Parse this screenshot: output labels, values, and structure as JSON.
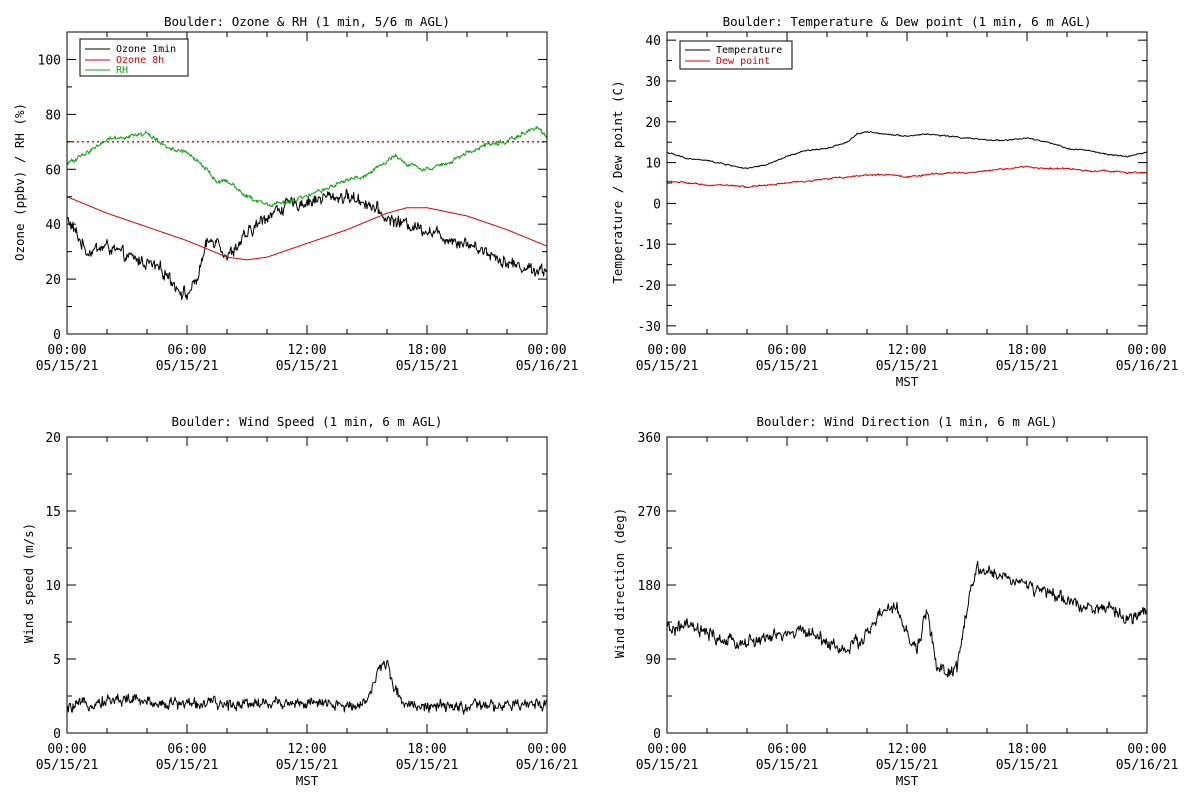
{
  "colors": {
    "background": "#ffffff",
    "axes": "#000000",
    "ozone_1min": "#000000",
    "ozone_8h": "#d40000",
    "rh": "#14a014",
    "temperature": "#000000",
    "dew_point": "#d40000",
    "wind": "#000000"
  },
  "chart_data": [
    {
      "type": "line",
      "title": "Boulder: Ozone & RH (1 min, 5/6 m AGL)",
      "xlabel": "",
      "ylabel": "Ozone (ppbv) / RH (%)",
      "x_ticks": [
        {
          "time": "00:00",
          "date": "05/15/21"
        },
        {
          "time": "06:00",
          "date": "05/15/21"
        },
        {
          "time": "12:00",
          "date": "05/15/21"
        },
        {
          "time": "18:00",
          "date": "05/15/21"
        },
        {
          "time": "00:00",
          "date": "05/16/21"
        }
      ],
      "xlim_hours": [
        0,
        24
      ],
      "ylim": [
        0,
        110
      ],
      "y_ticks": [
        "0",
        "20",
        "40",
        "60",
        "80",
        "100"
      ],
      "y_ticks_values": [
        0,
        20,
        40,
        60,
        80,
        100
      ],
      "legend_position": "top-left",
      "reference_line": {
        "value": 70,
        "style": "dotted",
        "color": "#d40000"
      },
      "series": [
        {
          "name": "Ozone 1min",
          "color": "#000000",
          "noise": 3.5,
          "x": [
            0,
            0.5,
            1,
            2,
            3,
            4,
            5,
            5.5,
            6,
            6.5,
            7,
            7.5,
            8,
            9,
            10,
            11,
            12,
            13,
            14,
            15,
            16,
            17,
            18,
            19,
            20,
            21,
            22,
            23,
            24
          ],
          "y": [
            42,
            36,
            30,
            32,
            28,
            26,
            22,
            17,
            14,
            20,
            33,
            35,
            28,
            36,
            43,
            47,
            48,
            50,
            50,
            48,
            42,
            40,
            38,
            35,
            33,
            30,
            26,
            24,
            23
          ]
        },
        {
          "name": "Ozone 8h",
          "color": "#d40000",
          "noise": 0,
          "x": [
            0,
            2,
            4,
            6,
            8,
            9,
            10,
            12,
            14,
            16,
            17,
            18,
            20,
            22,
            24
          ],
          "y": [
            50,
            44,
            39,
            34,
            28,
            27,
            28,
            33,
            38,
            44,
            46,
            46,
            43,
            38,
            32
          ]
        },
        {
          "name": "RH",
          "color": "#14a014",
          "noise": 1.2,
          "x": [
            0,
            1,
            2,
            3,
            4,
            5,
            6,
            7,
            7.5,
            8,
            9,
            10,
            11,
            12,
            13,
            14,
            15,
            16,
            16.5,
            17,
            18,
            19,
            20,
            21,
            22,
            23,
            23.5,
            24
          ],
          "y": [
            62,
            66,
            71,
            72,
            73,
            68,
            66,
            60,
            55,
            56,
            50,
            47,
            48,
            50,
            53,
            56,
            58,
            63,
            65,
            62,
            60,
            62,
            66,
            69,
            70,
            74,
            75,
            72
          ]
        }
      ]
    },
    {
      "type": "line",
      "title": "Boulder: Temperature & Dew point (1 min, 6 m AGL)",
      "xlabel": "MST",
      "ylabel": "Temperature / Dew point (C)",
      "x_ticks": [
        {
          "time": "00:00",
          "date": "05/15/21"
        },
        {
          "time": "06:00",
          "date": "05/15/21"
        },
        {
          "time": "12:00",
          "date": "05/15/21"
        },
        {
          "time": "18:00",
          "date": "05/15/21"
        },
        {
          "time": "00:00",
          "date": "05/16/21"
        }
      ],
      "xlim_hours": [
        0,
        24
      ],
      "ylim": [
        -32,
        42
      ],
      "y_ticks": [
        "-30",
        "-20",
        "-10",
        "0",
        "10",
        "20",
        "30",
        "40"
      ],
      "y_ticks_values": [
        -30,
        -20,
        -10,
        0,
        10,
        20,
        30,
        40
      ],
      "legend_position": "top-left",
      "series": [
        {
          "name": "Temperature",
          "color": "#000000",
          "noise": 0.25,
          "x": [
            0,
            1,
            2,
            3,
            4,
            5,
            6,
            7,
            8,
            9,
            9.5,
            10,
            11,
            12,
            13,
            14,
            15,
            16,
            17,
            18,
            19,
            20,
            21,
            22,
            23,
            24
          ],
          "y": [
            12.5,
            11,
            10.5,
            9.5,
            8.5,
            9.5,
            11.5,
            13,
            13.5,
            15,
            17,
            17.5,
            17,
            16.5,
            17,
            16.5,
            16,
            15.5,
            15.5,
            16,
            15,
            13.5,
            13,
            12,
            11.5,
            12.5
          ]
        },
        {
          "name": "Dew point",
          "color": "#d40000",
          "noise": 0.3,
          "x": [
            0,
            1,
            2,
            3,
            4,
            5,
            6,
            7,
            8,
            9,
            10,
            11,
            12,
            13,
            14,
            15,
            16,
            17,
            18,
            19,
            20,
            21,
            22,
            23,
            24
          ],
          "y": [
            5.5,
            5,
            4.5,
            4.5,
            4,
            4.5,
            5,
            5.5,
            6,
            6.5,
            7,
            7,
            6.5,
            7,
            7.5,
            7.5,
            8,
            8.5,
            9,
            8.5,
            8.5,
            8,
            8,
            7.5,
            7.5
          ]
        }
      ]
    },
    {
      "type": "line",
      "title": "Boulder: Wind Speed (1 min, 6 m AGL)",
      "xlabel": "MST",
      "ylabel": "Wind speed (m/s)",
      "x_ticks": [
        {
          "time": "00:00",
          "date": "05/15/21"
        },
        {
          "time": "06:00",
          "date": "05/15/21"
        },
        {
          "time": "12:00",
          "date": "05/15/21"
        },
        {
          "time": "18:00",
          "date": "05/15/21"
        },
        {
          "time": "00:00",
          "date": "05/16/21"
        }
      ],
      "xlim_hours": [
        0,
        24
      ],
      "ylim": [
        0,
        20
      ],
      "y_ticks": [
        "0",
        "5",
        "10",
        "15",
        "20"
      ],
      "y_ticks_values": [
        0,
        5,
        10,
        15,
        20
      ],
      "series": [
        {
          "color": "#000000",
          "noise": 0.6,
          "x": [
            0,
            1,
            2,
            3,
            4,
            5,
            6,
            7,
            8,
            9,
            10,
            11,
            12,
            13,
            14,
            15,
            15.5,
            16,
            16.5,
            17,
            18,
            19,
            20,
            21,
            22,
            23,
            24
          ],
          "y": [
            1.6,
            2.0,
            2.2,
            2.3,
            2.1,
            2.0,
            2.0,
            2.0,
            1.9,
            2.1,
            2.0,
            2.1,
            2.0,
            1.9,
            1.8,
            2.2,
            4.0,
            4.8,
            2.6,
            2.0,
            1.8,
            1.7,
            1.8,
            1.8,
            1.8,
            1.9,
            2.1
          ]
        }
      ]
    },
    {
      "type": "line",
      "title": "Boulder: Wind Direction (1 min, 6 m AGL)",
      "xlabel": "MST",
      "ylabel": "Wind direction (deg)",
      "x_ticks": [
        {
          "time": "00:00",
          "date": "05/15/21"
        },
        {
          "time": "06:00",
          "date": "05/15/21"
        },
        {
          "time": "12:00",
          "date": "05/15/21"
        },
        {
          "time": "18:00",
          "date": "05/15/21"
        },
        {
          "time": "00:00",
          "date": "05/16/21"
        }
      ],
      "xlim_hours": [
        0,
        24
      ],
      "ylim": [
        0,
        360
      ],
      "y_ticks": [
        "0",
        "90",
        "180",
        "270",
        "360"
      ],
      "y_ticks_values": [
        0,
        90,
        180,
        270,
        360
      ],
      "series": [
        {
          "color": "#000000",
          "noise": 12,
          "x": [
            0,
            1,
            2,
            3,
            4,
            5,
            6,
            7,
            8,
            9,
            10,
            10.5,
            11,
            11.5,
            12,
            12.5,
            13,
            13.5,
            14,
            14.5,
            15,
            15.5,
            16,
            17,
            18,
            19,
            20,
            21,
            22,
            23,
            24
          ],
          "y": [
            125,
            130,
            120,
            110,
            110,
            115,
            120,
            125,
            110,
            100,
            120,
            140,
            150,
            150,
            120,
            100,
            150,
            80,
            70,
            80,
            150,
            200,
            195,
            190,
            180,
            170,
            160,
            155,
            150,
            140,
            145
          ]
        }
      ]
    }
  ]
}
